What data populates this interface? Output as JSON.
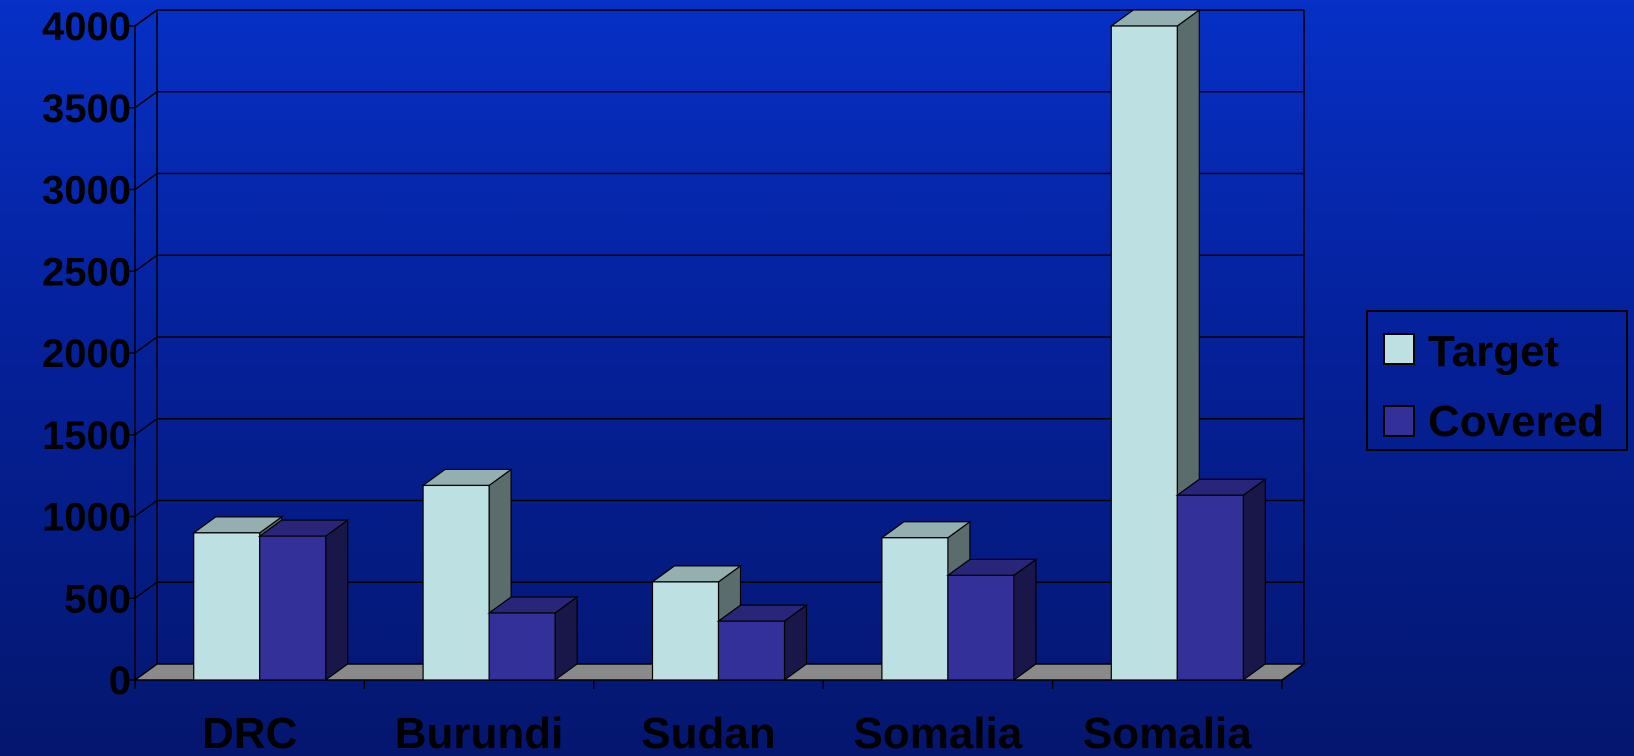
{
  "chart_data": {
    "type": "bar",
    "style": "3d-clustered-column",
    "categories": [
      "DRC",
      "Burundi",
      "Sudan",
      "Somalia",
      "Somalia"
    ],
    "series": [
      {
        "name": "Target",
        "values": [
          900,
          1190,
          600,
          870,
          4000
        ],
        "color": "#bde0e2"
      },
      {
        "name": "Covered",
        "values": [
          880,
          410,
          360,
          640,
          1130
        ],
        "color": "#34309a"
      }
    ],
    "y_ticks": [
      0,
      500,
      1000,
      1500,
      2000,
      2500,
      3000,
      3500,
      4000
    ],
    "ylim": [
      0,
      4000
    ],
    "grid": true,
    "legend_position": "right",
    "floor_color": "#8a8a8a"
  }
}
